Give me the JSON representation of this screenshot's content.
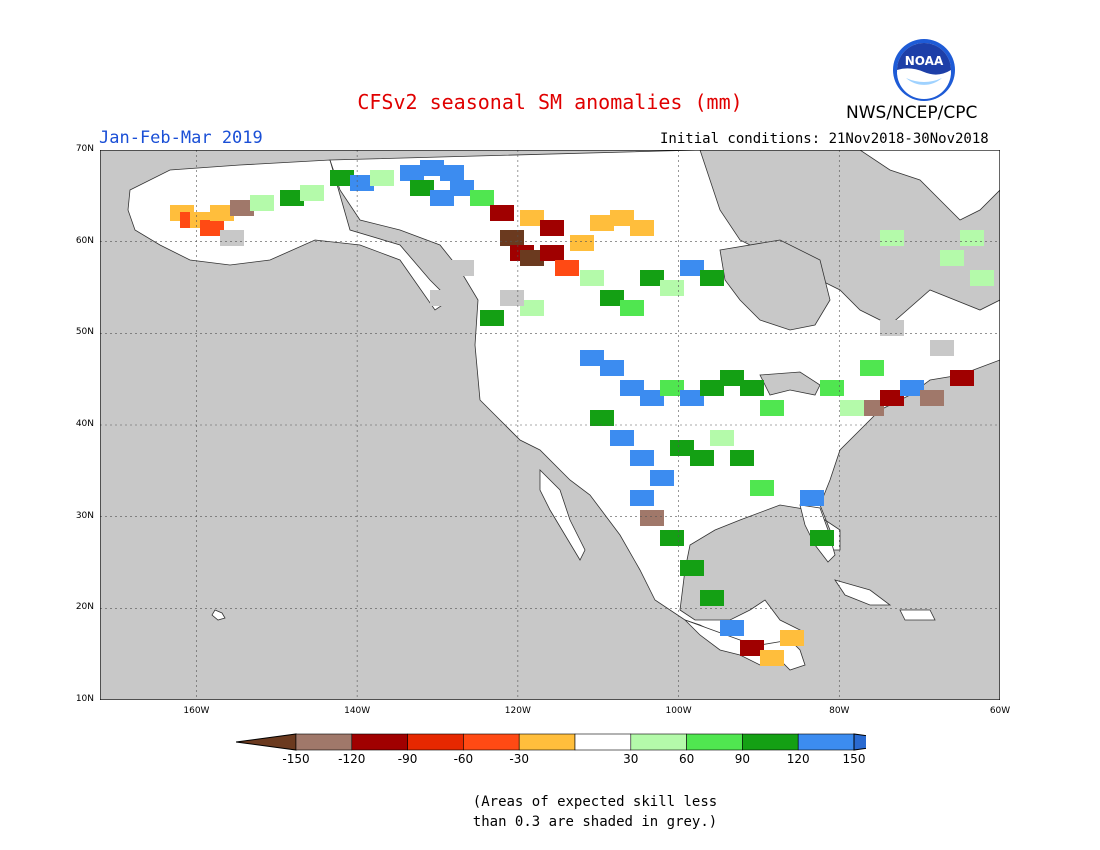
{
  "title": "CFSv2 seasonal SM anomalies (mm)",
  "season": "Jan-Feb-Mar 2019",
  "initial_conditions": "Initial conditions: 21Nov2018-30Nov2018",
  "agency": "NWS/NCEP/CPC",
  "logo": {
    "icon": "noaa-logo",
    "text": "NOAA"
  },
  "map": {
    "lon_range": [
      -172,
      -60
    ],
    "lat_range": [
      10,
      70
    ],
    "lat_labels": [
      "70N",
      "60N",
      "50N",
      "40N",
      "30N",
      "20N",
      "10N"
    ],
    "lon_labels": [
      "160W",
      "140W",
      "120W",
      "100W",
      "80W",
      "60W"
    ],
    "ocean_color": "#c8c8c8",
    "land_color": "#ffffff",
    "skill_mask_color": "#c8c8c8"
  },
  "colorbar": {
    "colors": [
      "#6b3a1f",
      "#a0786a",
      "#a00000",
      "#e62800",
      "#ff4a14",
      "#ffbe3c",
      "#ffffff",
      "#b4faaa",
      "#50e650",
      "#14a014",
      "#3c8cf0",
      "#2a6ad0"
    ],
    "labels": [
      "-150",
      "-120",
      "-90",
      "-60",
      "-30",
      "30",
      "60",
      "90",
      "120",
      "150"
    ]
  },
  "note": [
    "(Areas of expected skill less",
    "than 0.3 are shaded in grey.)"
  ]
}
